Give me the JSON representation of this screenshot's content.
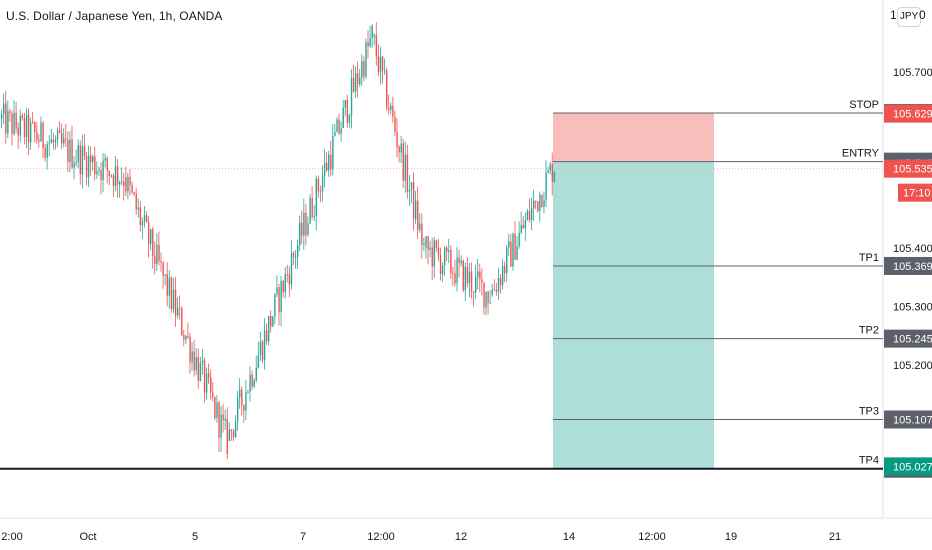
{
  "header": {
    "title": "U.S. Dollar / Japanese Yen, 1h, OANDA",
    "currency_badge": "JPY",
    "corner_left": "1",
    "corner_right": "0"
  },
  "colors": {
    "up": "#26a69a",
    "down": "#ef5350",
    "wick": "#5d606b",
    "stop_zone": "#f8b3af",
    "target_zone": "#a9ddd6",
    "label_grey": "#5d606b",
    "label_red": "#ef5350",
    "label_green": "#089981"
  },
  "chart_data": {
    "type": "candlestick",
    "symbol": "U.S. Dollar / Japanese Yen",
    "interval": "1h",
    "source": "OANDA",
    "y_axis_ticks": [
      {
        "value": 105.7,
        "label": "105.700"
      },
      {
        "value": 105.4,
        "label": "105.400"
      },
      {
        "value": 105.3,
        "label": "105.300"
      },
      {
        "value": 105.2,
        "label": "105.200"
      }
    ],
    "x_axis_ticks": [
      "2:00",
      "Oct",
      "5",
      "7",
      "12:00",
      "12",
      "14",
      "12:00",
      "19",
      "21"
    ],
    "ylim": [
      104.95,
      105.78
    ],
    "series_segments": [
      {
        "candles": 60,
        "start": 105.62,
        "end": 105.52,
        "min": 105.43,
        "max": 105.78
      },
      {
        "candles": 50,
        "start": 105.52,
        "end": 105.07,
        "min": 104.98,
        "max": 105.55
      },
      {
        "candles": 70,
        "start": 105.07,
        "end": 105.76,
        "min": 105.07,
        "max": 105.85
      },
      {
        "candles": 25,
        "start": 105.76,
        "end": 105.4,
        "min": 105.38,
        "max": 105.79
      },
      {
        "candles": 32,
        "start": 105.4,
        "end": 105.32,
        "min": 105.24,
        "max": 105.42
      },
      {
        "candles": 32,
        "start": 105.32,
        "end": 105.55,
        "min": 105.28,
        "max": 105.62
      }
    ],
    "levels": [
      {
        "name": "STOP",
        "value": 105.63,
        "axis_label": "105.630"
      },
      {
        "name": "ENTRY",
        "value": 105.547,
        "axis_label": "105.547"
      },
      {
        "name": "TP1",
        "value": 105.369,
        "axis_label": "105.369"
      },
      {
        "name": "TP2",
        "value": 105.245,
        "axis_label": "105.245"
      },
      {
        "name": "TP3",
        "value": 105.107,
        "axis_label": "105.107"
      },
      {
        "name": "TP4",
        "value": 105.023,
        "axis_label": "105.023"
      }
    ],
    "price_tags": [
      {
        "label": "105.629",
        "value": 105.629,
        "style": "red"
      },
      {
        "label": "105.545",
        "value": 105.545,
        "style": "grey"
      },
      {
        "label": "105.535",
        "value": 105.535,
        "style": "red"
      },
      {
        "label": "105.027",
        "value": 105.027,
        "style": "green"
      }
    ],
    "countdown": "17:10",
    "current_price": 105.535,
    "horizontal_line": 105.027,
    "position": {
      "side": "short",
      "entry": 105.547,
      "stop": 105.63,
      "target": 105.023
    }
  }
}
